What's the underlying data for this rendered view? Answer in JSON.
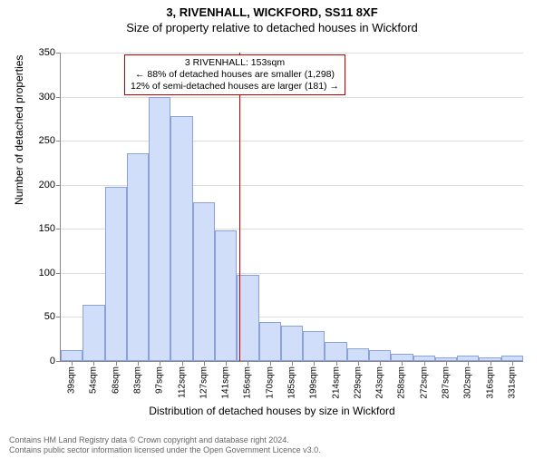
{
  "title_main": "3, RIVENHALL, WICKFORD, SS11 8XF",
  "title_sub": "Size of property relative to detached houses in Wickford",
  "y_axis_label": "Number of detached properties",
  "x_axis_label": "Distribution of detached houses by size in Wickford",
  "chart": {
    "type": "histogram",
    "ylim": [
      0,
      350
    ],
    "ytick_step": 50,
    "yticks": [
      0,
      50,
      100,
      150,
      200,
      250,
      300,
      350
    ],
    "bar_color": "#d1defa",
    "bar_border_color": "#8ca2d6",
    "grid_color": "#dddddd",
    "axis_color": "#888888",
    "background_color": "#ffffff",
    "categories": [
      "39sqm",
      "54sqm",
      "68sqm",
      "83sqm",
      "97sqm",
      "112sqm",
      "127sqm",
      "141sqm",
      "156sqm",
      "170sqm",
      "185sqm",
      "199sqm",
      "214sqm",
      "229sqm",
      "243sqm",
      "258sqm",
      "272sqm",
      "287sqm",
      "302sqm",
      "316sqm",
      "331sqm"
    ],
    "values": [
      12,
      64,
      198,
      236,
      300,
      278,
      180,
      148,
      98,
      44,
      40,
      34,
      22,
      14,
      12,
      8,
      6,
      4,
      6,
      4,
      6
    ],
    "reference_line": {
      "index_position": 8.1,
      "color": "#c00000"
    },
    "annotation": {
      "lines": [
        "3 RIVENHALL: 153sqm",
        "← 88% of detached houses are smaller (1,298)",
        "12% of semi-detached houses are larger (181) →"
      ],
      "border_color": "#c00000"
    }
  },
  "footer_line1": "Contains HM Land Registry data © Crown copyright and database right 2024.",
  "footer_line2": "Contains public sector information licensed under the Open Government Licence v3.0."
}
